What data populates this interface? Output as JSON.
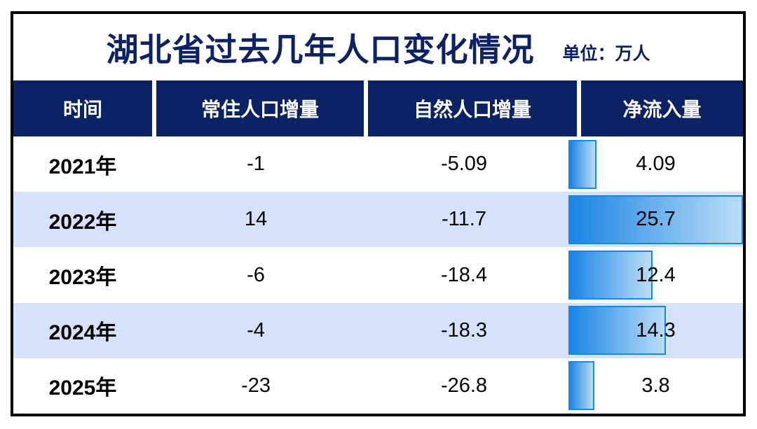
{
  "title": "湖北省过去几年人口变化情况",
  "unit_label": "单位：万人",
  "colors": {
    "frame_border": "#000000",
    "header_bg": "#0c2265",
    "header_text": "#ffffff",
    "title_text": "#0c2265",
    "row_alt_bg": "#d6e1fb",
    "bar_gradient_start": "#1b84e3",
    "bar_gradient_end": "#bbddf6",
    "bar_border": "#0d8bf2"
  },
  "table": {
    "headers": [
      "时间",
      "常住人口增量",
      "自然人口增量",
      "净流入量"
    ],
    "rows": [
      {
        "year": "2021年",
        "resident": "-1",
        "natural": "-5.09",
        "net_inflow": "4.09",
        "net_value": 4.09
      },
      {
        "year": "2022年",
        "resident": "14",
        "natural": "-11.7",
        "net_inflow": "25.7",
        "net_value": 25.7
      },
      {
        "year": "2023年",
        "resident": "-6",
        "natural": "-18.4",
        "net_inflow": "12.4",
        "net_value": 12.4
      },
      {
        "year": "2024年",
        "resident": "-4",
        "natural": "-18.3",
        "net_inflow": "14.3",
        "net_value": 14.3
      },
      {
        "year": "2025年",
        "resident": "-23",
        "natural": "-26.8",
        "net_inflow": "3.8",
        "net_value": 3.8
      }
    ]
  },
  "chart_data": {
    "type": "table",
    "title": "湖北省过去几年人口变化情况",
    "unit": "万人",
    "columns": [
      "时间",
      "常住人口增量",
      "自然人口增量",
      "净流入量"
    ],
    "categories": [
      "2021年",
      "2022年",
      "2023年",
      "2024年",
      "2025年"
    ],
    "series": [
      {
        "name": "常住人口增量",
        "values": [
          -1,
          14,
          -6,
          -4,
          -23
        ]
      },
      {
        "name": "自然人口增量",
        "values": [
          -5.09,
          -11.7,
          -18.4,
          -18.3,
          -26.8
        ]
      },
      {
        "name": "净流入量",
        "values": [
          4.09,
          25.7,
          12.4,
          14.3,
          3.8
        ]
      }
    ],
    "bar_column": "净流入量",
    "bar_max": 25.7
  }
}
